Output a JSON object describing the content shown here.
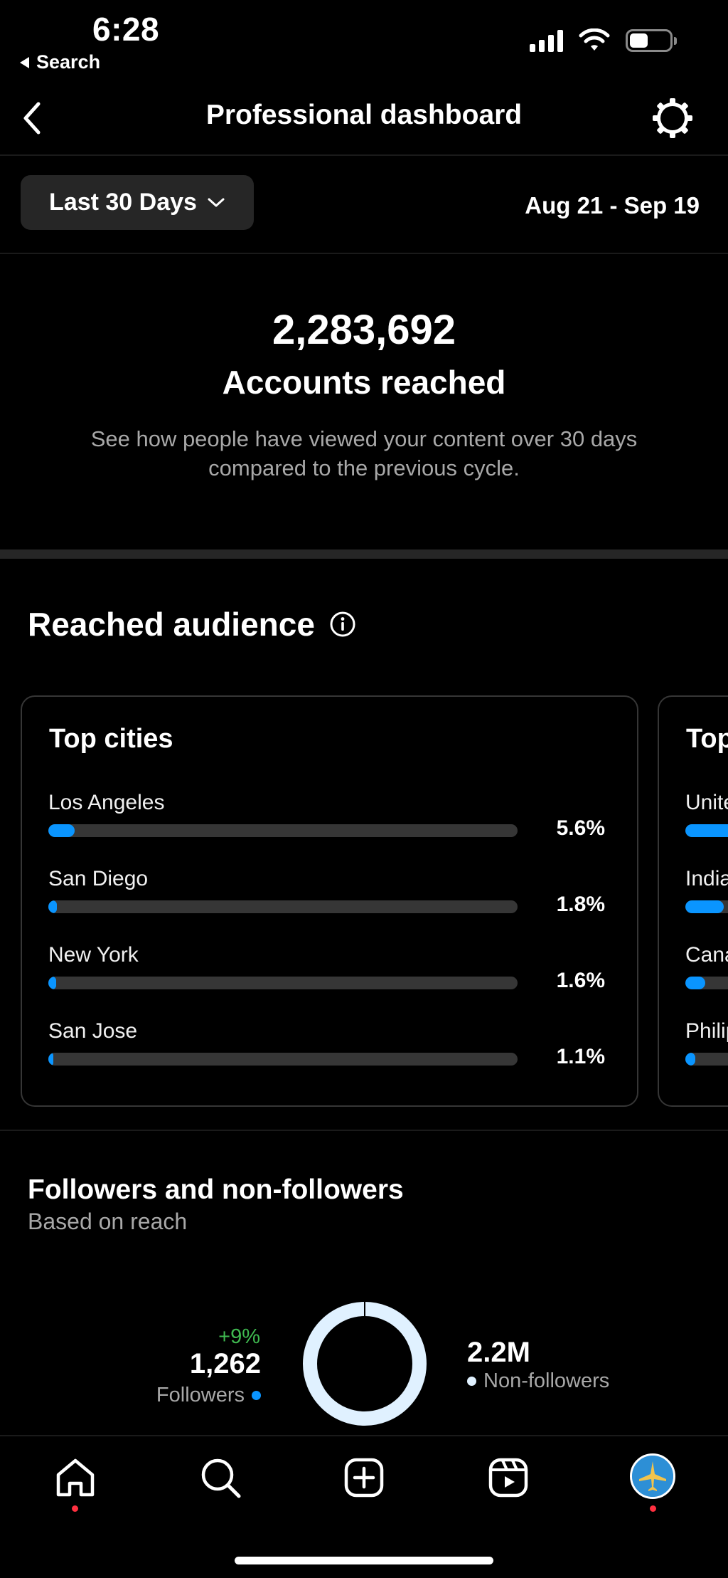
{
  "status": {
    "time": "6:28",
    "back_app": "Search"
  },
  "header": {
    "title": "Professional dashboard"
  },
  "filter": {
    "range_label": "Last 30 Days",
    "date_range": "Aug 21 - Sep 19"
  },
  "summary": {
    "value": "2,283,692",
    "label": "Accounts reached",
    "description": "See how people have viewed your content over 30 days compared to the previous cycle."
  },
  "audience": {
    "title": "Reached audience",
    "top_cities": {
      "title": "Top cities",
      "rows": [
        {
          "label": "Los Angeles",
          "value": "5.6%",
          "fraction": 0.056
        },
        {
          "label": "San Diego",
          "value": "1.8%",
          "fraction": 0.018
        },
        {
          "label": "New York",
          "value": "1.6%",
          "fraction": 0.016
        },
        {
          "label": "San Jose",
          "value": "1.1%",
          "fraction": 0.011
        }
      ]
    },
    "top_countries_peek": {
      "title": "Top",
      "rows": [
        {
          "label": "Unite"
        },
        {
          "label": "India"
        },
        {
          "label": "Cana"
        },
        {
          "label": "Philip"
        }
      ]
    }
  },
  "followers": {
    "title": "Followers and non-followers",
    "subtitle": "Based on reach",
    "followers_delta": "+9%",
    "followers_count": "1,262",
    "followers_label": "Followers",
    "non_followers_count": "2.2M",
    "non_followers_label": "Non-followers",
    "colors": {
      "followers": "#0a95ff",
      "non_followers": "#e0f1ff",
      "positive": "#3fb950"
    }
  },
  "tabbar": {
    "items": [
      "home-icon",
      "search-icon",
      "create-icon",
      "reels-icon",
      "profile-avatar"
    ]
  }
}
